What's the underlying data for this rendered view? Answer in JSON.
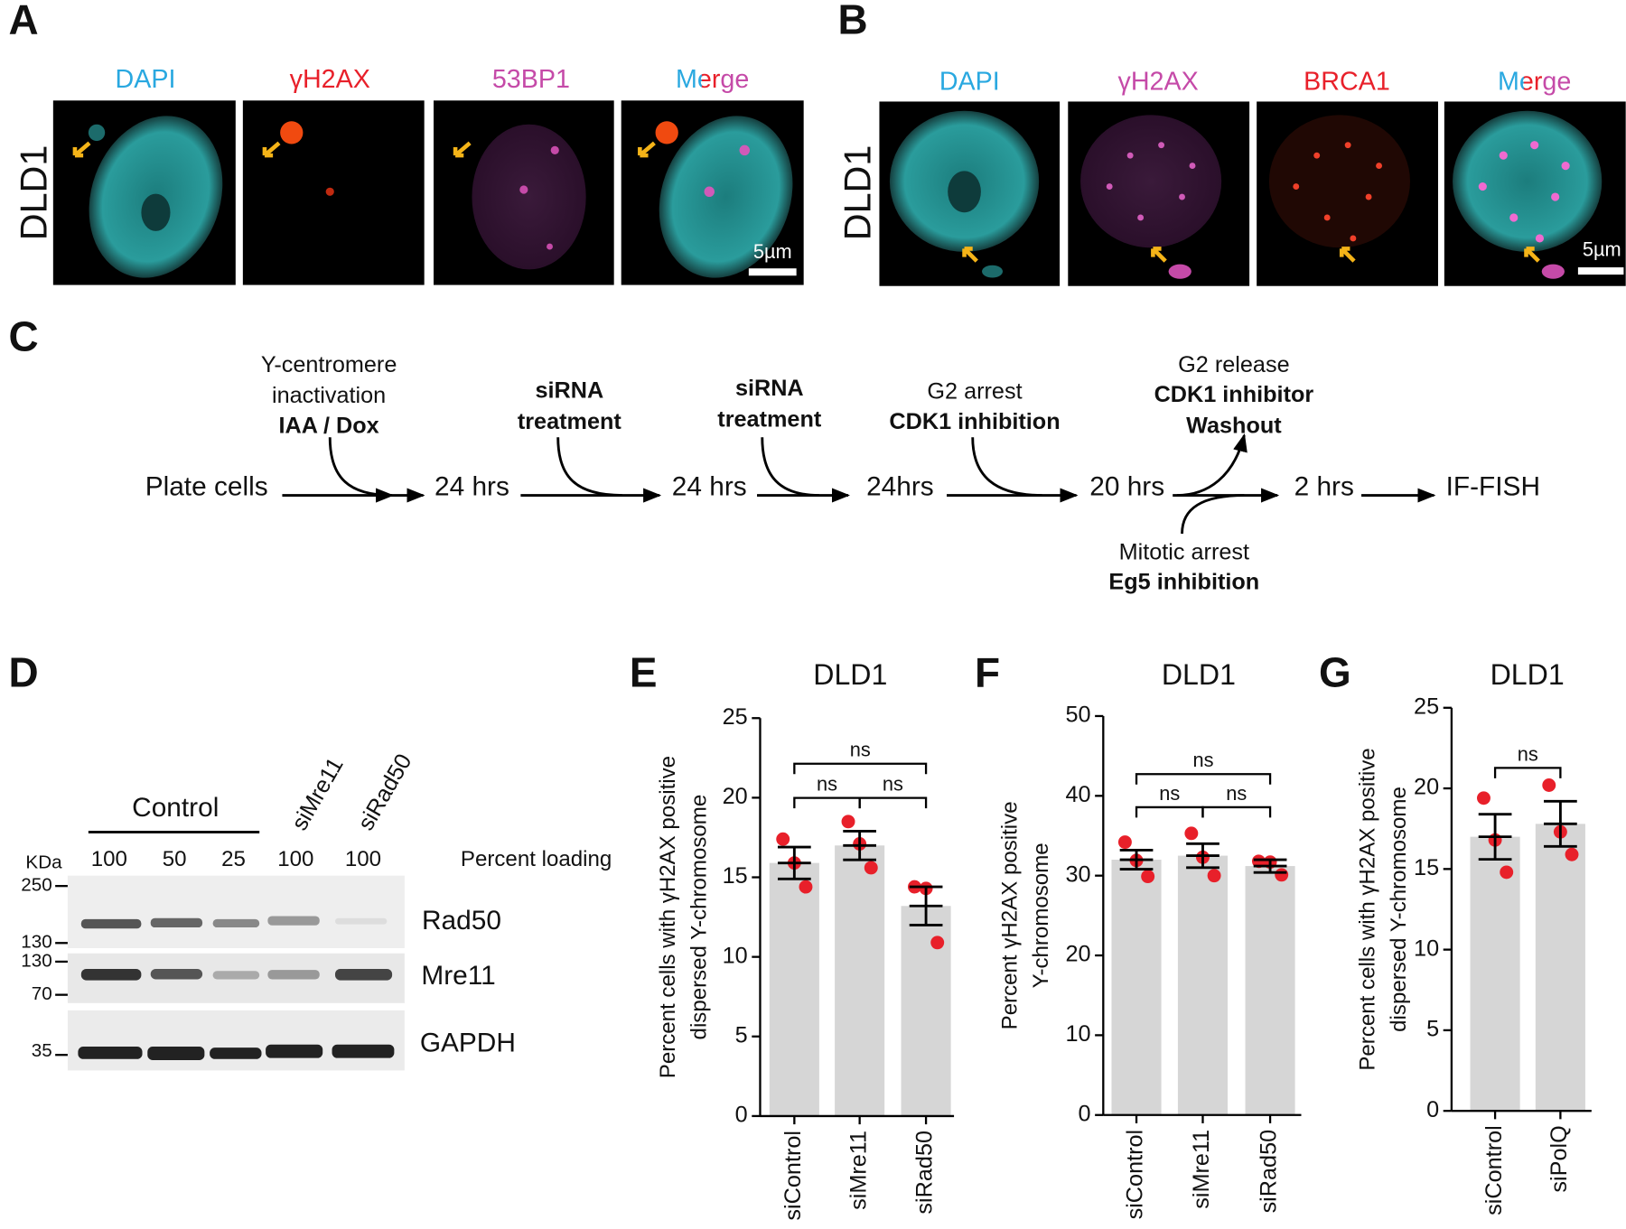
{
  "panels": {
    "A": {
      "label": "A",
      "cell_line": "DLD1",
      "channels": [
        "DAPI",
        "γH2AX",
        "53BP1",
        "Merge"
      ],
      "scale_bar": "5µm"
    },
    "B": {
      "label": "B",
      "cell_line": "DLD1",
      "channels": [
        "DAPI",
        "γH2AX",
        "BRCA1",
        "Merge"
      ],
      "scale_bar": "5µm"
    },
    "C": {
      "label": "C",
      "timeline": [
        "Plate cells",
        "24 hrs",
        "24 hrs",
        "24hrs",
        "20 hrs",
        "2 hrs",
        "IF-FISH"
      ],
      "steps": [
        [
          "Y-centromere",
          "inactivation",
          "IAA / Dox"
        ],
        [
          "siRNA",
          "treatment"
        ],
        [
          "siRNA",
          "treatment"
        ],
        [
          "G2 arrest",
          "CDK1 inhibition"
        ],
        [
          "G2 release",
          "CDK1 inhibitor",
          "Washout"
        ],
        [
          "Mitotic arrest",
          "Eg5 inhibition"
        ]
      ]
    },
    "D": {
      "label": "D",
      "groups": [
        "Control",
        "siMre11",
        "siRad50"
      ],
      "kda": "KDa",
      "lanes": [
        "100",
        "50",
        "25",
        "100",
        "100"
      ],
      "loading_label": "Percent loading",
      "markers": [
        "250",
        "130",
        "130",
        "70",
        "35"
      ],
      "proteins": [
        "Rad50",
        "Mre11",
        "GAPDH"
      ]
    }
  },
  "chart_data": [
    {
      "type": "bar",
      "panel": "E",
      "title": "DLD1",
      "y_label": [
        "Percent cells with γH2AX positive",
        "dispersed Y-chromosome"
      ],
      "categories": [
        "siControl",
        "siMre11",
        "siRad50"
      ],
      "values": [
        15.9,
        17.0,
        13.2
      ],
      "errors": [
        1.0,
        0.9,
        1.2
      ],
      "points": [
        [
          17.4,
          15.9,
          14.4
        ],
        [
          18.5,
          17.1,
          15.6
        ],
        [
          14.4,
          14.3,
          10.9
        ]
      ],
      "color": "#d6d6d6",
      "point_color": "#e8202a",
      "ylim": [
        0,
        25
      ],
      "yticks": [
        0,
        5,
        10,
        15,
        20,
        25
      ],
      "annotations": [
        {
          "text": "ns",
          "from": 0,
          "to": 2
        },
        {
          "text": "ns",
          "from": 0,
          "to": 1
        },
        {
          "text": "ns",
          "from": 1,
          "to": 2
        }
      ]
    },
    {
      "type": "bar",
      "panel": "F",
      "title": "DLD1",
      "y_label": [
        "Percent γH2AX positive",
        "Y-chromosome"
      ],
      "categories": [
        "siControl",
        "siMre11",
        "siRad50"
      ],
      "values": [
        32.0,
        32.5,
        31.2
      ],
      "errors": [
        1.2,
        1.5,
        0.8
      ],
      "points": [
        [
          34.2,
          31.9,
          29.9
        ],
        [
          35.3,
          32.3,
          30.0
        ],
        [
          31.8,
          31.7,
          30.1
        ]
      ],
      "color": "#d6d6d6",
      "point_color": "#e8202a",
      "ylim": [
        0,
        50
      ],
      "yticks": [
        0,
        10,
        20,
        30,
        40,
        50
      ],
      "annotations": [
        {
          "text": "ns",
          "from": 0,
          "to": 2
        },
        {
          "text": "ns",
          "from": 0,
          "to": 1
        },
        {
          "text": "ns",
          "from": 1,
          "to": 2
        }
      ]
    },
    {
      "type": "bar",
      "panel": "G",
      "title": "DLD1",
      "y_label": [
        "Percent cells with γH2AX positive",
        "dispersed Y-chromosome"
      ],
      "categories": [
        "siControl",
        "siPolQ"
      ],
      "values": [
        17.0,
        17.8
      ],
      "errors": [
        1.4,
        1.4
      ],
      "points": [
        [
          19.4,
          16.8,
          14.8
        ],
        [
          20.2,
          17.3,
          15.9
        ]
      ],
      "color": "#d6d6d6",
      "point_color": "#e8202a",
      "ylim": [
        0,
        25
      ],
      "yticks": [
        0,
        5,
        10,
        15,
        20,
        25
      ],
      "annotations": [
        {
          "text": "ns",
          "from": 0,
          "to": 1
        }
      ]
    }
  ]
}
